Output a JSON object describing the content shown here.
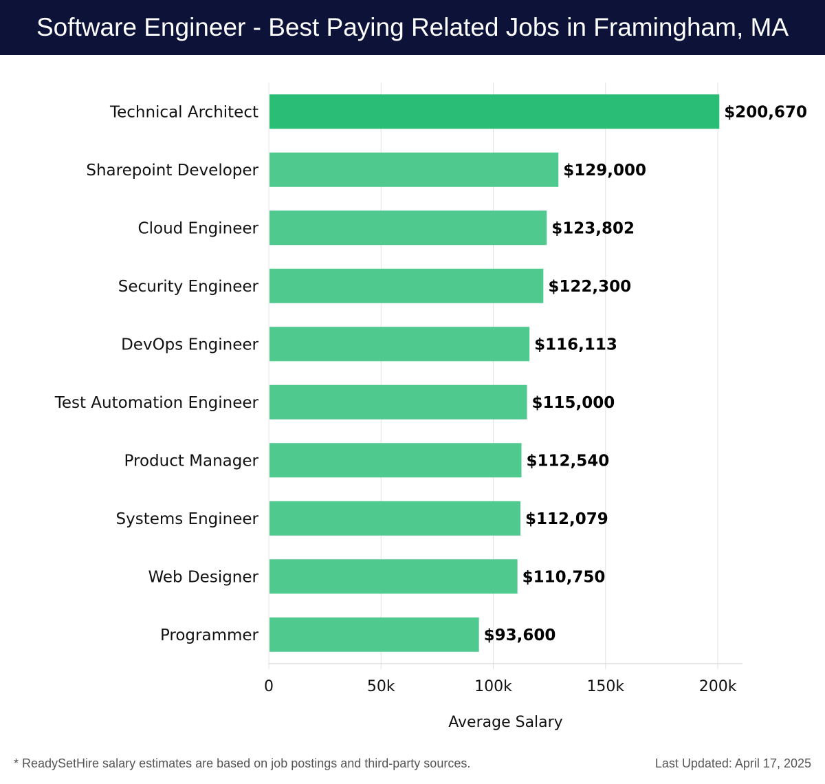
{
  "header": {
    "title": "Software Engineer - Best Paying Related Jobs in Framingham, MA"
  },
  "chart_data": {
    "type": "bar",
    "orientation": "horizontal",
    "categories": [
      "Technical Architect",
      "Sharepoint Developer",
      "Cloud Engineer",
      "Security Engineer",
      "DevOps Engineer",
      "Test Automation Engineer",
      "Product Manager",
      "Systems Engineer",
      "Web Designer",
      "Programmer"
    ],
    "values": [
      200670,
      129000,
      123802,
      122300,
      116113,
      115000,
      112540,
      112079,
      110750,
      93600
    ],
    "value_labels": [
      "$200,670",
      "$129,000",
      "$123,802",
      "$122,300",
      "$116,113",
      "$115,000",
      "$112,540",
      "$112,079",
      "$110,750",
      "$93,600"
    ],
    "xlabel": "Average Salary",
    "ylabel": "",
    "xlim": [
      0,
      211000
    ],
    "xticks": [
      0,
      50000,
      100000,
      150000,
      200000
    ],
    "xtick_labels": [
      "0",
      "50k",
      "100k",
      "150k",
      "200k"
    ],
    "grid": true,
    "colors": {
      "highlight": "#2abd76",
      "bar": "#4fc98e",
      "grid": "#e3e3e3",
      "axis": "#cccccc",
      "text": "#111111"
    }
  },
  "footer": {
    "note": "* ReadySetHire salary estimates are based on job postings and third-party sources.",
    "updated": "Last Updated: April 17, 2025"
  }
}
